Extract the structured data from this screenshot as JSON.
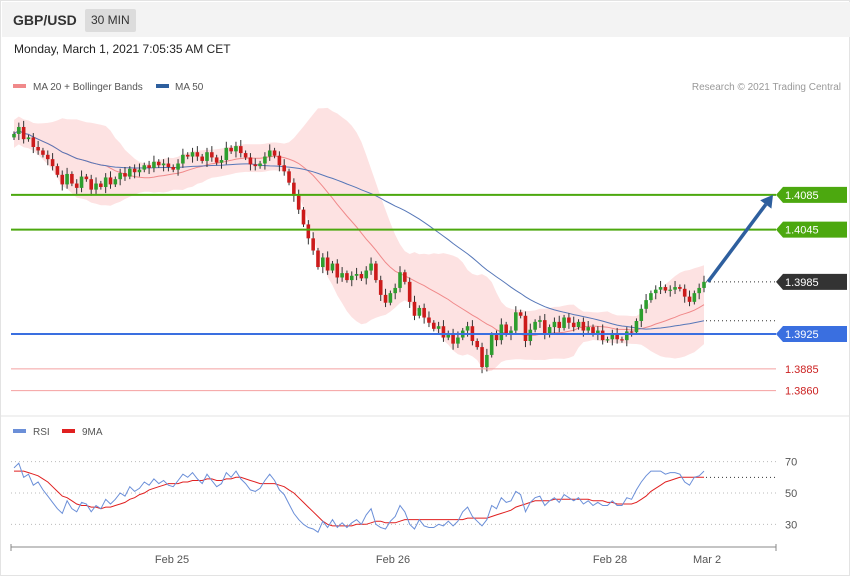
{
  "header": {
    "pair": "GBP/USD",
    "timeframe": "30 MIN"
  },
  "timestamp": "Monday, March 1, 2021 7:05:35 AM CET",
  "legend": {
    "ma20": "MA 20 + Bollinger Bands",
    "ma50": "MA 50",
    "credit": "Research © 2021 Trading Central"
  },
  "rsi_legend": {
    "rsi": "RSI",
    "ma9": "9MA"
  },
  "colors": {
    "resistance": "#4ca80f",
    "support": "#3a6fe0",
    "current": "#333333",
    "target_arrow": "#2e5f9e",
    "minor_support": "#cc2222",
    "band_fill": "#fde2e2",
    "ma20": "#f0898a",
    "ma50": "#5677b8",
    "rsi": "#6b8fd8",
    "rsi_ma": "#e02020",
    "bull": "#2e9e2e",
    "bear": "#cc1b1b"
  },
  "chart_data": [
    {
      "type": "candlestick",
      "title": "GBP/USD 30 MIN",
      "x_ticks": [
        "Feb 25",
        "Feb 26",
        "Feb 28",
        "Mar 2"
      ],
      "ylim": [
        1.384,
        1.4194
      ],
      "levels": [
        {
          "label": "1.4085",
          "value": 1.4085,
          "kind": "resistance"
        },
        {
          "label": "1.4045",
          "value": 1.4045,
          "kind": "resistance"
        },
        {
          "label": "1.3985",
          "value": 1.3985,
          "kind": "current"
        },
        {
          "label": "1.3925",
          "value": 1.3925,
          "kind": "support"
        },
        {
          "label": "1.3885",
          "value": 1.3885,
          "kind": "minor_support"
        },
        {
          "label": "1.3860",
          "value": 1.386,
          "kind": "minor_support"
        }
      ],
      "target": {
        "from": 1.3985,
        "to": 1.4085
      },
      "close": [
        1.4155,
        1.4163,
        1.4149,
        1.4151,
        1.414,
        1.4136,
        1.4131,
        1.4126,
        1.4118,
        1.4108,
        1.4097,
        1.4109,
        1.4098,
        1.4093,
        1.4106,
        1.4103,
        1.4091,
        1.4098,
        1.4094,
        1.4105,
        1.4097,
        1.4103,
        1.411,
        1.4106,
        1.4115,
        1.4111,
        1.4114,
        1.4119,
        1.4116,
        1.4123,
        1.4119,
        1.4121,
        1.4117,
        1.4114,
        1.4121,
        1.4131,
        1.4129,
        1.4134,
        1.4129,
        1.4124,
        1.4134,
        1.4128,
        1.4122,
        1.4125,
        1.4139,
        1.4135,
        1.4141,
        1.4133,
        1.4128,
        1.412,
        1.4118,
        1.4121,
        1.4129,
        1.4136,
        1.413,
        1.4119,
        1.4112,
        1.4099,
        1.4084,
        1.4068,
        1.4051,
        1.4035,
        1.4021,
        1.4002,
        1.4013,
        1.3998,
        1.4006,
        1.399,
        1.3995,
        1.3987,
        1.3992,
        1.3994,
        1.3989,
        1.3998,
        1.4006,
        1.3987,
        1.397,
        1.3961,
        1.3972,
        1.3978,
        1.3996,
        1.3985,
        1.3962,
        1.3946,
        1.3955,
        1.3944,
        1.3938,
        1.3931,
        1.3934,
        1.3921,
        1.3926,
        1.3914,
        1.3921,
        1.3929,
        1.3934,
        1.3917,
        1.391,
        1.3887,
        1.3901,
        1.3924,
        1.3918,
        1.3936,
        1.3925,
        1.3929,
        1.395,
        1.3946,
        1.3917,
        1.393,
        1.3939,
        1.3941,
        1.3924,
        1.3933,
        1.3939,
        1.3932,
        1.3944,
        1.3938,
        1.3933,
        1.3939,
        1.3929,
        1.3933,
        1.3925,
        1.3929,
        1.3918,
        1.3919,
        1.3925,
        1.3919,
        1.3918,
        1.3928,
        1.3927,
        1.394,
        1.3954,
        1.3964,
        1.3972,
        1.3976,
        1.3979,
        1.3975,
        1.3976,
        1.3979,
        1.3977,
        1.3968,
        1.3962,
        1.3972,
        1.3978,
        1.3985
      ]
    },
    {
      "type": "line",
      "title": "RSI",
      "ylim": [
        20,
        80
      ],
      "y_ticks": [
        70,
        50,
        30
      ],
      "series": [
        {
          "name": "RSI",
          "values": [
            66,
            69,
            60,
            62,
            55,
            57,
            52,
            48,
            44,
            40,
            37,
            45,
            40,
            38,
            44,
            43,
            38,
            42,
            40,
            46,
            43,
            46,
            50,
            48,
            54,
            51,
            53,
            57,
            55,
            59,
            56,
            58,
            55,
            54,
            58,
            62,
            60,
            63,
            59,
            56,
            62,
            58,
            54,
            56,
            63,
            60,
            64,
            59,
            56,
            52,
            51,
            53,
            58,
            62,
            58,
            52,
            49,
            43,
            37,
            33,
            30,
            28,
            27,
            25,
            32,
            28,
            33,
            28,
            31,
            28,
            31,
            33,
            30,
            36,
            40,
            30,
            28,
            27,
            32,
            35,
            42,
            38,
            30,
            27,
            33,
            29,
            28,
            28,
            30,
            29,
            32,
            29,
            32,
            38,
            41,
            35,
            32,
            29,
            33,
            42,
            40,
            47,
            44,
            45,
            51,
            49,
            38,
            44,
            47,
            48,
            42,
            45,
            47,
            44,
            49,
            47,
            45,
            47,
            43,
            45,
            42,
            44,
            42,
            42,
            45,
            42,
            42,
            47,
            46,
            52,
            57,
            61,
            64,
            64,
            64,
            62,
            63,
            63,
            62,
            57,
            55,
            60,
            61,
            64
          ]
        },
        {
          "name": "9MA",
          "values": [
            64,
            64,
            64,
            63,
            62,
            61,
            59,
            57,
            54,
            51,
            48,
            47,
            45,
            43,
            42,
            42,
            41,
            41,
            40,
            41,
            41,
            42,
            43,
            44,
            46,
            47,
            49,
            50,
            52,
            53,
            54,
            55,
            56,
            56,
            56,
            57,
            57,
            58,
            58,
            58,
            59,
            59,
            58,
            58,
            59,
            59,
            60,
            60,
            59,
            58,
            57,
            56,
            56,
            56,
            56,
            55,
            54,
            52,
            50,
            47,
            44,
            41,
            38,
            35,
            32,
            30,
            29,
            29,
            29,
            29,
            29,
            30,
            30,
            30,
            31,
            32,
            32,
            31,
            31,
            31,
            32,
            33,
            33,
            33,
            33,
            33,
            33,
            33,
            33,
            33,
            33,
            33,
            33,
            33,
            34,
            34,
            34,
            34,
            34,
            35,
            36,
            37,
            38,
            39,
            41,
            42,
            43,
            44,
            45,
            45,
            45,
            45,
            46,
            46,
            46,
            46,
            46,
            46,
            46,
            46,
            45,
            45,
            45,
            44,
            44,
            43,
            43,
            43,
            43,
            44,
            46,
            48,
            51,
            53,
            55,
            57,
            58,
            59,
            60,
            60,
            60,
            60,
            60,
            60
          ]
        }
      ]
    }
  ]
}
